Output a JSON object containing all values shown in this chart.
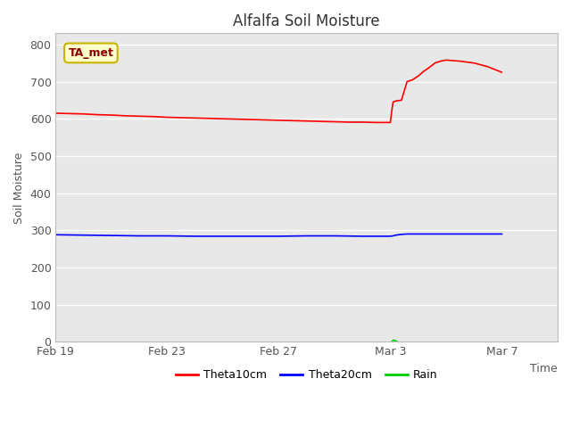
{
  "title": "Alfalfa Soil Moisture",
  "xlabel": "Time",
  "ylabel": "Soil Moisture",
  "ylim": [
    0,
    830
  ],
  "yticks": [
    0,
    100,
    200,
    300,
    400,
    500,
    600,
    700,
    800
  ],
  "background_color": "#e8e8e8",
  "fig_color": "#ffffff",
  "annotation_text": "TA_met",
  "annotation_bg": "#ffffcc",
  "annotation_border": "#c8b400",
  "legend_labels": [
    "Theta10cm",
    "Theta20cm",
    "Rain"
  ],
  "legend_colors": [
    "#ff0000",
    "#0000ff",
    "#00cc00"
  ],
  "theta10_x": [
    0,
    0.5,
    1.0,
    1.5,
    2.0,
    2.5,
    3.0,
    3.5,
    4.0,
    4.5,
    5.0,
    5.5,
    6.0,
    6.5,
    7.0,
    7.5,
    8.0,
    8.5,
    9.0,
    9.5,
    10.0,
    10.5,
    11.0,
    11.5,
    12.0,
    12.05,
    12.1,
    12.2,
    12.4,
    12.6,
    12.8,
    13.0,
    13.2,
    13.4,
    13.6,
    13.8,
    14.0,
    14.5,
    15.0,
    15.5,
    16.0
  ],
  "theta10_y": [
    615,
    614,
    613,
    611,
    610,
    608,
    607,
    606,
    604,
    603,
    602,
    601,
    600,
    599,
    598,
    597,
    596,
    595,
    594,
    593,
    592,
    591,
    591,
    590,
    590,
    620,
    645,
    648,
    650,
    700,
    705,
    715,
    728,
    738,
    750,
    755,
    758,
    755,
    750,
    740,
    725
  ],
  "theta20_x": [
    0,
    1,
    2,
    3,
    4,
    5,
    6,
    7,
    8,
    9,
    10,
    11,
    12,
    12.1,
    12.2,
    12.4,
    12.6,
    13.0,
    14.0,
    15.0,
    16.0
  ],
  "theta20_y": [
    288,
    287,
    286,
    285,
    285,
    284,
    284,
    284,
    284,
    285,
    285,
    284,
    284,
    285,
    287,
    289,
    290,
    290,
    290,
    290,
    290
  ],
  "rain_x": [
    12.05,
    12.1,
    12.15,
    12.2,
    12.25
  ],
  "rain_y": [
    0,
    4,
    4,
    2,
    0
  ],
  "x_tick_labels": [
    "Feb 19",
    "Feb 23",
    "Feb 27",
    "Mar 3",
    "Mar 7"
  ],
  "x_tick_pos": [
    0,
    4,
    8,
    12,
    16
  ]
}
